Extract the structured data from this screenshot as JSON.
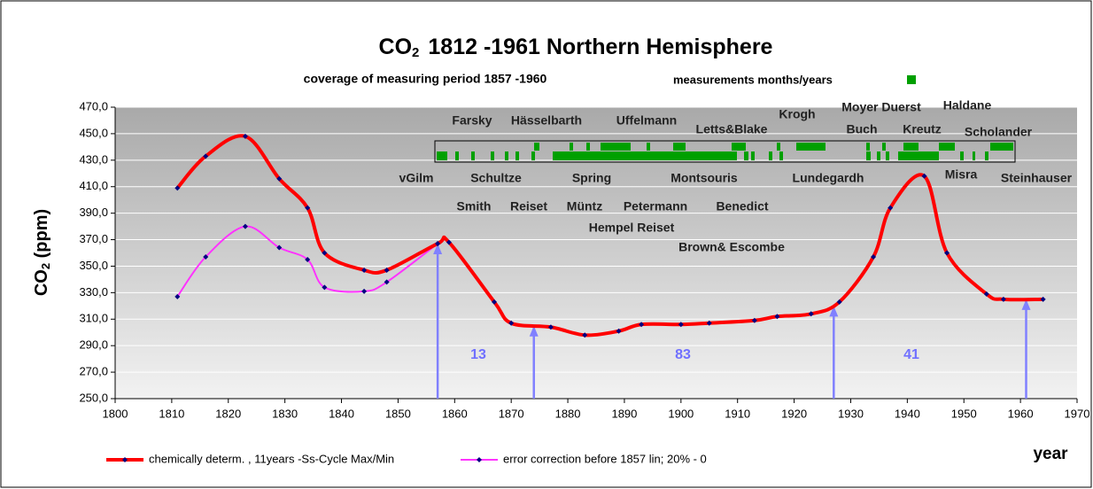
{
  "chart_data": {
    "type": "line",
    "title_main": "CO",
    "title_sub": "2",
    "title_rest": "1812 -1961   Northern Hemisphere",
    "subtitle": "coverage of measuring period  1857 -1960",
    "coverage_legend": "measurements months/years",
    "y_label_main": "CO",
    "y_label_sub": "2",
    "y_label_rest": " (ppm)",
    "x_label": "year",
    "xlim": [
      1800,
      1970
    ],
    "xticks": [
      1800,
      1810,
      1820,
      1830,
      1840,
      1850,
      1860,
      1870,
      1880,
      1890,
      1900,
      1910,
      1920,
      1930,
      1940,
      1950,
      1960,
      1970
    ],
    "ylim": [
      250,
      470
    ],
    "yticks": [
      {
        "value": 250,
        "label": "250,0"
      },
      {
        "value": 270,
        "label": "270,0"
      },
      {
        "value": 290,
        "label": "290,0"
      },
      {
        "value": 310,
        "label": "310,0"
      },
      {
        "value": 330,
        "label": "330,0"
      },
      {
        "value": 350,
        "label": "350,0"
      },
      {
        "value": 370,
        "label": "370,0"
      },
      {
        "value": 390,
        "label": "390,0"
      },
      {
        "value": 410,
        "label": "410,0"
      },
      {
        "value": 430,
        "label": "430,0"
      },
      {
        "value": 450,
        "label": "450,0"
      },
      {
        "value": 470,
        "label": "470,0"
      }
    ],
    "grid": true,
    "series": [
      {
        "name": "chemically determ. , 11years -Ss-Cycle Max/Min",
        "color": "#ff0000",
        "x": [
          1811,
          1816,
          1823,
          1829,
          1834,
          1837,
          1844,
          1848,
          1857,
          1859,
          1867,
          1870,
          1877,
          1883,
          1889,
          1893,
          1900,
          1905,
          1913,
          1917,
          1923,
          1928,
          1934,
          1937,
          1943,
          1947,
          1954,
          1957,
          1964
        ],
        "values": [
          409,
          433,
          448,
          416,
          394,
          360,
          347,
          347,
          367,
          368,
          323,
          307,
          304,
          298,
          301,
          306,
          306,
          307,
          309,
          312,
          314,
          323,
          357,
          394,
          418,
          360,
          329,
          325,
          325
        ]
      },
      {
        "name": "error correction before  1857 lin; 20% - 0",
        "color": "#ff33ff",
        "x": [
          1811,
          1816,
          1823,
          1829,
          1834,
          1837,
          1844,
          1848,
          1857
        ],
        "values": [
          327,
          357,
          380,
          364,
          355,
          334,
          331,
          338,
          367
        ]
      }
    ],
    "arrows": [
      {
        "x": 1857,
        "y": 367
      },
      {
        "x": 1874,
        "y": 305
      },
      {
        "x": 1927,
        "y": 320
      },
      {
        "x": 1961,
        "y": 325
      }
    ],
    "period_counts": [
      13,
      83,
      41
    ],
    "researchers": [
      "Farsky",
      "Hässelbarth",
      "Uffelmann",
      "Letts&Blake",
      "Krogh",
      "Moyer Duerst",
      "Haldane",
      "Buch",
      "Kreutz",
      "Scholander",
      "vGilm",
      "Schultze",
      "Spring",
      "Montsouris",
      "Lundegardh",
      "Misra",
      "Steinhauser",
      "Smith",
      "Reiset",
      "Müntz",
      "Petermann",
      "Benedict",
      "Hempel Reiset",
      "Brown& Escombe"
    ]
  }
}
